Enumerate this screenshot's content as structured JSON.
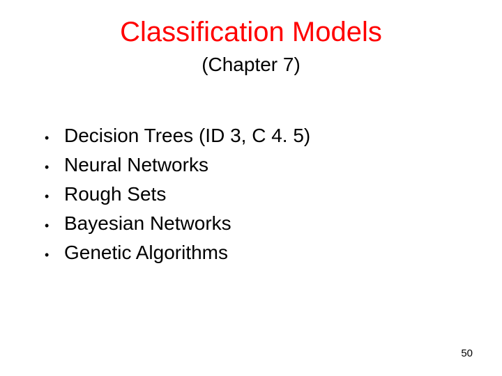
{
  "title": {
    "text": "Classification Models",
    "color": "#ff0000",
    "fontsize": 40
  },
  "subtitle": {
    "text": "(Chapter 7)",
    "color": "#000000",
    "fontsize": 28
  },
  "bullets": {
    "items": [
      "Decision Trees (ID 3, C 4. 5)",
      "Neural Networks",
      "Rough Sets",
      "Bayesian Networks",
      "Genetic Algorithms"
    ],
    "marker": "•",
    "fontsize": 28,
    "color": "#000000"
  },
  "page_number": "50",
  "background_color": "#ffffff"
}
